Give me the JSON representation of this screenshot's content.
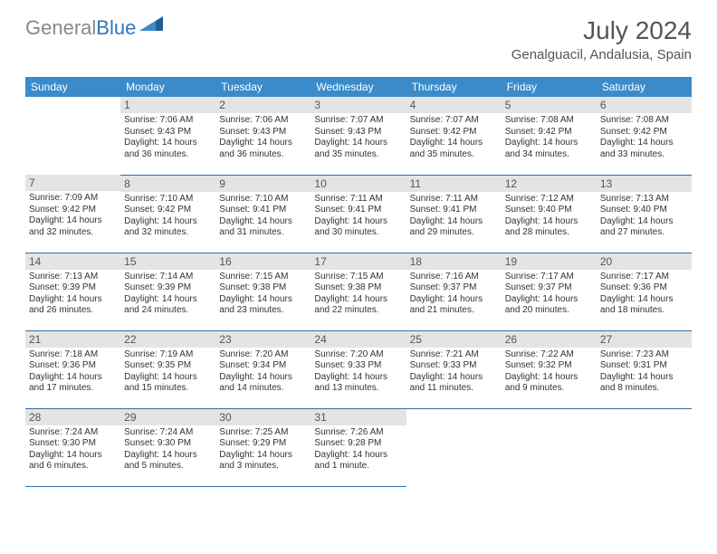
{
  "logo": {
    "gray": "General",
    "blue": "Blue"
  },
  "title": "July 2024",
  "location": "Genalguacil, Andalusia, Spain",
  "colors": {
    "header_bg": "#3b8bca",
    "header_text": "#ffffff",
    "daynum_bg": "#e4e4e4",
    "border": "#2f6fa8",
    "logo_gray": "#888888",
    "logo_blue": "#2f77b9"
  },
  "weekdays": [
    "Sunday",
    "Monday",
    "Tuesday",
    "Wednesday",
    "Thursday",
    "Friday",
    "Saturday"
  ],
  "weeks": [
    [
      null,
      {
        "d": "1",
        "sr": "Sunrise: 7:06 AM",
        "ss": "Sunset: 9:43 PM",
        "dl1": "Daylight: 14 hours",
        "dl2": "and 36 minutes."
      },
      {
        "d": "2",
        "sr": "Sunrise: 7:06 AM",
        "ss": "Sunset: 9:43 PM",
        "dl1": "Daylight: 14 hours",
        "dl2": "and 36 minutes."
      },
      {
        "d": "3",
        "sr": "Sunrise: 7:07 AM",
        "ss": "Sunset: 9:43 PM",
        "dl1": "Daylight: 14 hours",
        "dl2": "and 35 minutes."
      },
      {
        "d": "4",
        "sr": "Sunrise: 7:07 AM",
        "ss": "Sunset: 9:42 PM",
        "dl1": "Daylight: 14 hours",
        "dl2": "and 35 minutes."
      },
      {
        "d": "5",
        "sr": "Sunrise: 7:08 AM",
        "ss": "Sunset: 9:42 PM",
        "dl1": "Daylight: 14 hours",
        "dl2": "and 34 minutes."
      },
      {
        "d": "6",
        "sr": "Sunrise: 7:08 AM",
        "ss": "Sunset: 9:42 PM",
        "dl1": "Daylight: 14 hours",
        "dl2": "and 33 minutes."
      }
    ],
    [
      {
        "d": "7",
        "sr": "Sunrise: 7:09 AM",
        "ss": "Sunset: 9:42 PM",
        "dl1": "Daylight: 14 hours",
        "dl2": "and 32 minutes."
      },
      {
        "d": "8",
        "sr": "Sunrise: 7:10 AM",
        "ss": "Sunset: 9:42 PM",
        "dl1": "Daylight: 14 hours",
        "dl2": "and 32 minutes."
      },
      {
        "d": "9",
        "sr": "Sunrise: 7:10 AM",
        "ss": "Sunset: 9:41 PM",
        "dl1": "Daylight: 14 hours",
        "dl2": "and 31 minutes."
      },
      {
        "d": "10",
        "sr": "Sunrise: 7:11 AM",
        "ss": "Sunset: 9:41 PM",
        "dl1": "Daylight: 14 hours",
        "dl2": "and 30 minutes."
      },
      {
        "d": "11",
        "sr": "Sunrise: 7:11 AM",
        "ss": "Sunset: 9:41 PM",
        "dl1": "Daylight: 14 hours",
        "dl2": "and 29 minutes."
      },
      {
        "d": "12",
        "sr": "Sunrise: 7:12 AM",
        "ss": "Sunset: 9:40 PM",
        "dl1": "Daylight: 14 hours",
        "dl2": "and 28 minutes."
      },
      {
        "d": "13",
        "sr": "Sunrise: 7:13 AM",
        "ss": "Sunset: 9:40 PM",
        "dl1": "Daylight: 14 hours",
        "dl2": "and 27 minutes."
      }
    ],
    [
      {
        "d": "14",
        "sr": "Sunrise: 7:13 AM",
        "ss": "Sunset: 9:39 PM",
        "dl1": "Daylight: 14 hours",
        "dl2": "and 26 minutes."
      },
      {
        "d": "15",
        "sr": "Sunrise: 7:14 AM",
        "ss": "Sunset: 9:39 PM",
        "dl1": "Daylight: 14 hours",
        "dl2": "and 24 minutes."
      },
      {
        "d": "16",
        "sr": "Sunrise: 7:15 AM",
        "ss": "Sunset: 9:38 PM",
        "dl1": "Daylight: 14 hours",
        "dl2": "and 23 minutes."
      },
      {
        "d": "17",
        "sr": "Sunrise: 7:15 AM",
        "ss": "Sunset: 9:38 PM",
        "dl1": "Daylight: 14 hours",
        "dl2": "and 22 minutes."
      },
      {
        "d": "18",
        "sr": "Sunrise: 7:16 AM",
        "ss": "Sunset: 9:37 PM",
        "dl1": "Daylight: 14 hours",
        "dl2": "and 21 minutes."
      },
      {
        "d": "19",
        "sr": "Sunrise: 7:17 AM",
        "ss": "Sunset: 9:37 PM",
        "dl1": "Daylight: 14 hours",
        "dl2": "and 20 minutes."
      },
      {
        "d": "20",
        "sr": "Sunrise: 7:17 AM",
        "ss": "Sunset: 9:36 PM",
        "dl1": "Daylight: 14 hours",
        "dl2": "and 18 minutes."
      }
    ],
    [
      {
        "d": "21",
        "sr": "Sunrise: 7:18 AM",
        "ss": "Sunset: 9:36 PM",
        "dl1": "Daylight: 14 hours",
        "dl2": "and 17 minutes."
      },
      {
        "d": "22",
        "sr": "Sunrise: 7:19 AM",
        "ss": "Sunset: 9:35 PM",
        "dl1": "Daylight: 14 hours",
        "dl2": "and 15 minutes."
      },
      {
        "d": "23",
        "sr": "Sunrise: 7:20 AM",
        "ss": "Sunset: 9:34 PM",
        "dl1": "Daylight: 14 hours",
        "dl2": "and 14 minutes."
      },
      {
        "d": "24",
        "sr": "Sunrise: 7:20 AM",
        "ss": "Sunset: 9:33 PM",
        "dl1": "Daylight: 14 hours",
        "dl2": "and 13 minutes."
      },
      {
        "d": "25",
        "sr": "Sunrise: 7:21 AM",
        "ss": "Sunset: 9:33 PM",
        "dl1": "Daylight: 14 hours",
        "dl2": "and 11 minutes."
      },
      {
        "d": "26",
        "sr": "Sunrise: 7:22 AM",
        "ss": "Sunset: 9:32 PM",
        "dl1": "Daylight: 14 hours",
        "dl2": "and 9 minutes."
      },
      {
        "d": "27",
        "sr": "Sunrise: 7:23 AM",
        "ss": "Sunset: 9:31 PM",
        "dl1": "Daylight: 14 hours",
        "dl2": "and 8 minutes."
      }
    ],
    [
      {
        "d": "28",
        "sr": "Sunrise: 7:24 AM",
        "ss": "Sunset: 9:30 PM",
        "dl1": "Daylight: 14 hours",
        "dl2": "and 6 minutes."
      },
      {
        "d": "29",
        "sr": "Sunrise: 7:24 AM",
        "ss": "Sunset: 9:30 PM",
        "dl1": "Daylight: 14 hours",
        "dl2": "and 5 minutes."
      },
      {
        "d": "30",
        "sr": "Sunrise: 7:25 AM",
        "ss": "Sunset: 9:29 PM",
        "dl1": "Daylight: 14 hours",
        "dl2": "and 3 minutes."
      },
      {
        "d": "31",
        "sr": "Sunrise: 7:26 AM",
        "ss": "Sunset: 9:28 PM",
        "dl1": "Daylight: 14 hours",
        "dl2": "and 1 minute."
      },
      null,
      null,
      null
    ]
  ]
}
